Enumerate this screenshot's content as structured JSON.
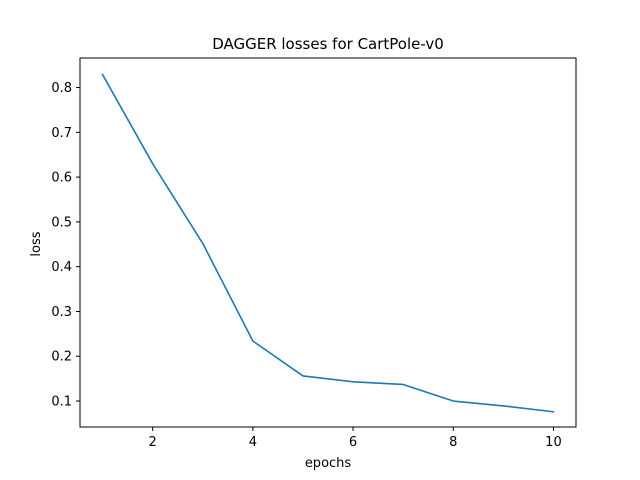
{
  "chart_data": {
    "type": "line",
    "title": "DAGGER losses for CartPole-v0",
    "xlabel": "epochs",
    "ylabel": "loss",
    "xlim": [
      0.55,
      10.45
    ],
    "ylim": [
      0.042,
      0.866
    ],
    "xticks": [
      2,
      4,
      6,
      8,
      10
    ],
    "yticks": [
      0.1,
      0.2,
      0.3,
      0.4,
      0.5,
      0.6,
      0.7,
      0.8
    ],
    "xtick_labels": [
      "2",
      "4",
      "6",
      "8",
      "10"
    ],
    "ytick_labels": [
      "0.1",
      "0.2",
      "0.3",
      "0.4",
      "0.5",
      "0.6",
      "0.7",
      "0.8"
    ],
    "grid": false,
    "series": [
      {
        "color": "#1f77b4",
        "x": [
          1,
          2,
          3,
          4,
          5,
          6,
          7,
          8,
          9,
          10
        ],
        "y": [
          0.829,
          0.63,
          0.452,
          0.234,
          0.156,
          0.143,
          0.137,
          0.1,
          0.089,
          0.076
        ]
      }
    ]
  }
}
